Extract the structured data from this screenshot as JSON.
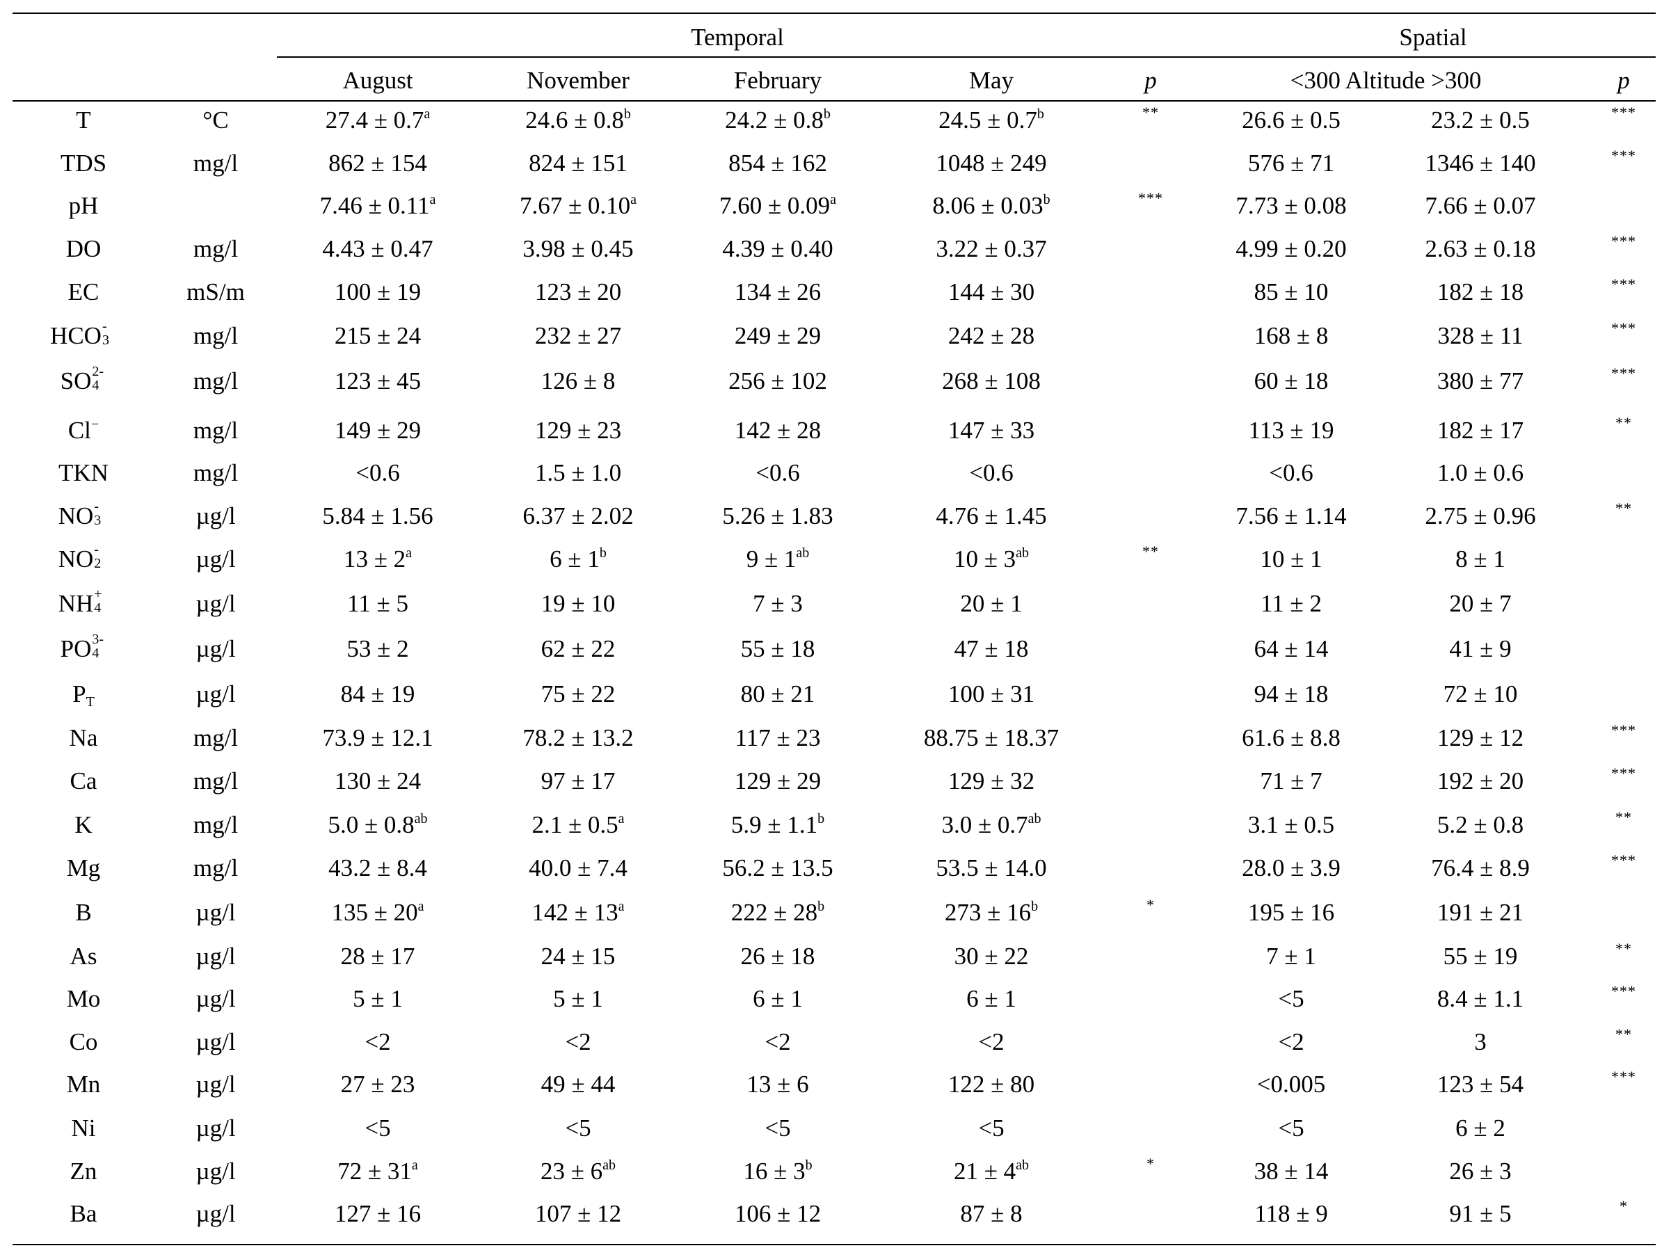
{
  "groups": {
    "temporal": "Temporal",
    "spatial": "Spatial"
  },
  "headers": {
    "august": "August",
    "november": "November",
    "february": "February",
    "may": "May",
    "p1": "p",
    "altitude": "<300 Altitude >300",
    "p2": "p"
  },
  "rows": [
    {
      "param": "T",
      "unit": "°C",
      "cells": [
        [
          "27.4 ± 0.7",
          "a"
        ],
        [
          "24.6 ± 0.8",
          "b"
        ],
        [
          "24.2 ± 0.8",
          "b"
        ],
        [
          "24.5 ± 0.7",
          "b"
        ]
      ],
      "p1": "**",
      "lo": "26.6 ± 0.5",
      "hi": "23.2 ± 0.5",
      "p2": "***"
    },
    {
      "param": "TDS",
      "unit": "mg/l",
      "cells": [
        [
          "862 ± 154",
          ""
        ],
        [
          "824 ± 151",
          ""
        ],
        [
          "854 ± 162",
          ""
        ],
        [
          "1048 ± 249",
          ""
        ]
      ],
      "p1": "",
      "lo": "576 ± 71",
      "hi": "1346 ± 140",
      "p2": "***"
    },
    {
      "param": "pH",
      "unit": "",
      "cells": [
        [
          "7.46 ± 0.11",
          "a"
        ],
        [
          "7.67 ± 0.10",
          "a"
        ],
        [
          "7.60 ± 0.09",
          "a"
        ],
        [
          "8.06 ± 0.03",
          "b"
        ]
      ],
      "p1": "***",
      "lo": "7.73 ± 0.08",
      "hi": "7.66 ± 0.07",
      "p2": ""
    },
    {
      "param": "DO",
      "unit": "mg/l",
      "cells": [
        [
          "4.43 ± 0.47",
          ""
        ],
        [
          "3.98 ± 0.45",
          ""
        ],
        [
          "4.39 ± 0.40",
          ""
        ],
        [
          "3.22 ± 0.37",
          ""
        ]
      ],
      "p1": "",
      "lo": "4.99 ± 0.20",
      "hi": "2.63 ± 0.18",
      "p2": "***"
    },
    {
      "param": "EC",
      "unit": "mS/m",
      "cells": [
        [
          "100 ± 19",
          ""
        ],
        [
          "123 ± 20",
          ""
        ],
        [
          "134 ± 26",
          ""
        ],
        [
          "144 ± 30",
          ""
        ]
      ],
      "p1": "",
      "lo": "85 ± 10",
      "hi": "182 ± 18",
      "p2": "***"
    },
    {
      "param": "HCO",
      "param_sub": "3",
      "param_sup": "-",
      "unit": "mg/l",
      "cells": [
        [
          "215 ± 24",
          ""
        ],
        [
          "232 ± 27",
          ""
        ],
        [
          "249 ± 29",
          ""
        ],
        [
          "242 ± 28",
          ""
        ]
      ],
      "p1": "",
      "lo": "168 ± 8",
      "hi": "328 ± 11",
      "p2": "***"
    },
    {
      "param": "SO",
      "param_sub": "4",
      "param_sup": "2-",
      "unit": "mg/l",
      "cells": [
        [
          "123 ± 45",
          ""
        ],
        [
          "126 ± 8",
          ""
        ],
        [
          "256 ± 102",
          ""
        ],
        [
          "268 ± 108",
          ""
        ]
      ],
      "p1": "",
      "lo": "60 ± 18",
      "hi": "380 ± 77",
      "p2": "***"
    },
    {
      "param": "Cl",
      "param_sub": "",
      "param_sup": "−",
      "unit": "mg/l",
      "cells": [
        [
          "149 ± 29",
          ""
        ],
        [
          "129 ± 23",
          ""
        ],
        [
          "142 ± 28",
          ""
        ],
        [
          "147 ± 33",
          ""
        ]
      ],
      "p1": "",
      "lo": "113 ± 19",
      "hi": "182 ± 17",
      "p2": "**"
    },
    {
      "param": "TKN",
      "unit": "mg/l",
      "cells": [
        [
          "<0.6",
          ""
        ],
        [
          "1.5 ± 1.0",
          ""
        ],
        [
          "<0.6",
          ""
        ],
        [
          "<0.6",
          ""
        ]
      ],
      "p1": "",
      "lo": "<0.6",
      "hi": "1.0 ± 0.6",
      "p2": ""
    },
    {
      "param": "NO",
      "param_sub": "3",
      "param_sup": "-",
      "unit": "µg/l",
      "cells": [
        [
          "5.84 ± 1.56",
          ""
        ],
        [
          "6.37 ± 2.02",
          ""
        ],
        [
          "5.26 ± 1.83",
          ""
        ],
        [
          "4.76 ± 1.45",
          ""
        ]
      ],
      "p1": "",
      "lo": "7.56 ± 1.14",
      "hi": "2.75 ± 0.96",
      "p2": "**"
    },
    {
      "param": "NO",
      "param_sub": "2",
      "param_sup": "-",
      "unit": "µg/l",
      "cells": [
        [
          "13 ± 2",
          "a"
        ],
        [
          "6 ± 1",
          "b"
        ],
        [
          "9 ± 1",
          "ab"
        ],
        [
          "10 ± 3",
          "ab"
        ]
      ],
      "p1": "**",
      "lo": "10 ± 1",
      "hi": "8 ± 1",
      "p2": ""
    },
    {
      "param": "NH",
      "param_sub": "4",
      "param_sup": "+",
      "unit": "µg/l",
      "cells": [
        [
          "11 ± 5",
          ""
        ],
        [
          "19 ± 10",
          ""
        ],
        [
          "7 ± 3",
          ""
        ],
        [
          "20 ± 1",
          ""
        ]
      ],
      "p1": "",
      "lo": "11 ± 2",
      "hi": "20 ± 7",
      "p2": ""
    },
    {
      "param": "PO",
      "param_sub": "4",
      "param_sup": "3-",
      "unit": "µg/l",
      "cells": [
        [
          "53 ± 2",
          ""
        ],
        [
          "62 ± 22",
          ""
        ],
        [
          "55 ± 18",
          ""
        ],
        [
          "47 ± 18",
          ""
        ]
      ],
      "p1": "",
      "lo": "64 ± 14",
      "hi": "41 ± 9",
      "p2": ""
    },
    {
      "param": "P",
      "param_sub": "T",
      "param_sup": "",
      "unit": "µg/l",
      "cells": [
        [
          "84 ± 19",
          ""
        ],
        [
          "75 ± 22",
          ""
        ],
        [
          "80 ± 21",
          ""
        ],
        [
          "100 ± 31",
          ""
        ]
      ],
      "p1": "",
      "lo": "94 ± 18",
      "hi": "72 ± 10",
      "p2": ""
    },
    {
      "param": "Na",
      "unit": "mg/l",
      "cells": [
        [
          "73.9 ± 12.1",
          ""
        ],
        [
          "78.2 ± 13.2",
          ""
        ],
        [
          "117 ± 23",
          ""
        ],
        [
          "88.75 ± 18.37",
          ""
        ]
      ],
      "p1": "",
      "lo": "61.6 ± 8.8",
      "hi": "129 ± 12",
      "p2": "***"
    },
    {
      "param": "Ca",
      "unit": "mg/l",
      "cells": [
        [
          "130 ± 24",
          ""
        ],
        [
          "97 ± 17",
          ""
        ],
        [
          "129 ± 29",
          ""
        ],
        [
          "129 ± 32",
          ""
        ]
      ],
      "p1": "",
      "lo": "71 ± 7",
      "hi": "192 ± 20",
      "p2": "***"
    },
    {
      "param": "K",
      "unit": "mg/l",
      "cells": [
        [
          "5.0 ± 0.8",
          "ab"
        ],
        [
          "2.1 ± 0.5",
          "a"
        ],
        [
          "5.9 ± 1.1",
          "b"
        ],
        [
          "3.0 ± 0.7",
          "ab"
        ]
      ],
      "p1": "",
      "lo": "3.1 ± 0.5",
      "hi": "5.2 ± 0.8",
      "p2": "**"
    },
    {
      "param": "Mg",
      "unit": "mg/l",
      "cells": [
        [
          "43.2 ± 8.4",
          ""
        ],
        [
          "40.0 ± 7.4",
          ""
        ],
        [
          "56.2 ± 13.5",
          ""
        ],
        [
          "53.5 ± 14.0",
          ""
        ]
      ],
      "p1": "",
      "lo": "28.0 ± 3.9",
      "hi": "76.4 ± 8.9",
      "p2": "***"
    },
    {
      "param": "B",
      "unit": "µg/l",
      "cells": [
        [
          "135 ± 20",
          "a"
        ],
        [
          "142 ± 13",
          "a"
        ],
        [
          "222 ± 28",
          "b"
        ],
        [
          "273 ± 16",
          "b"
        ]
      ],
      "p1": "*",
      "lo": "195 ± 16",
      "hi": "191 ± 21",
      "p2": ""
    },
    {
      "param": "As",
      "unit": "µg/l",
      "cells": [
        [
          "28 ± 17",
          ""
        ],
        [
          "24 ± 15",
          ""
        ],
        [
          "26 ± 18",
          ""
        ],
        [
          "30 ± 22",
          ""
        ]
      ],
      "p1": "",
      "lo": "7 ± 1",
      "hi": "55 ± 19",
      "p2": "**"
    },
    {
      "param": "Mo",
      "unit": "µg/l",
      "cells": [
        [
          "5 ± 1",
          ""
        ],
        [
          "5 ± 1",
          ""
        ],
        [
          "6 ± 1",
          ""
        ],
        [
          "6 ± 1",
          ""
        ]
      ],
      "p1": "",
      "lo": "<5",
      "hi": "8.4 ± 1.1",
      "p2": "***"
    },
    {
      "param": "Co",
      "unit": "µg/l",
      "cells": [
        [
          "<2",
          ""
        ],
        [
          "<2",
          ""
        ],
        [
          "<2",
          ""
        ],
        [
          "<2",
          ""
        ]
      ],
      "p1": "",
      "lo": "<2",
      "hi": "3",
      "p2": "**"
    },
    {
      "param": "Mn",
      "unit": "µg/l",
      "cells": [
        [
          "27 ± 23",
          ""
        ],
        [
          "49 ± 44",
          ""
        ],
        [
          "13 ± 6",
          ""
        ],
        [
          "122 ± 80",
          ""
        ]
      ],
      "p1": "",
      "lo": "<0.005",
      "hi": "123 ± 54",
      "p2": "***"
    },
    {
      "param": "Ni",
      "unit": "µg/l",
      "cells": [
        [
          "<5",
          ""
        ],
        [
          "<5",
          ""
        ],
        [
          "<5",
          ""
        ],
        [
          "<5",
          ""
        ]
      ],
      "p1": "",
      "lo": "<5",
      "hi": "6 ± 2",
      "p2": ""
    },
    {
      "param": "Zn",
      "unit": "µg/l",
      "cells": [
        [
          "72 ± 31",
          "a"
        ],
        [
          "23 ± 6",
          "ab"
        ],
        [
          "16 ± 3",
          "b"
        ],
        [
          "21 ± 4",
          "ab"
        ]
      ],
      "p1": "*",
      "lo": "38 ± 14",
      "hi": "26 ± 3",
      "p2": ""
    },
    {
      "param": "Ba",
      "unit": "µg/l",
      "cells": [
        [
          "127 ± 16",
          ""
        ],
        [
          "107 ± 12",
          ""
        ],
        [
          "106 ± 12",
          ""
        ],
        [
          "87 ± 8",
          ""
        ]
      ],
      "p1": "",
      "lo": "118 ± 9",
      "hi": "91 ± 5",
      "p2": "*"
    }
  ]
}
